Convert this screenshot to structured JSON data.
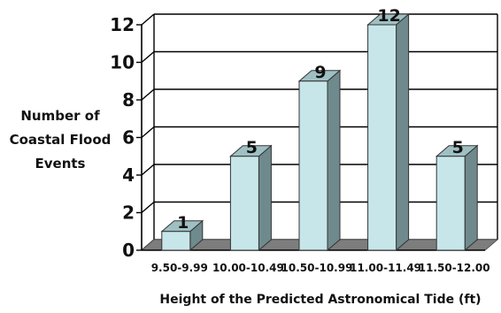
{
  "chart_data": {
    "type": "bar",
    "categories": [
      "9.50-9.99",
      "10.00-10.49",
      "10.50-10.99",
      "11.00-11.49",
      "11.50-12.00"
    ],
    "values": [
      1,
      5,
      9,
      12,
      5
    ],
    "data_labels": [
      "1",
      "5",
      "9",
      "12",
      "5"
    ],
    "title": "",
    "xlabel": "Height of the Predicted Astronomical Tide (ft)",
    "ylabel_lines": [
      "Number of",
      "Coastal Flood",
      "Events"
    ],
    "ylim": [
      0,
      12
    ],
    "yticks": [
      0,
      2,
      4,
      6,
      8,
      10,
      12
    ],
    "grid": true,
    "legend": "none",
    "colors": {
      "bar_front": "#c7e6ea",
      "bar_side": "#6f8a8c",
      "bar_top": "#9fc0c3",
      "floor": "#7d7d7d",
      "grid": "#000000"
    }
  }
}
